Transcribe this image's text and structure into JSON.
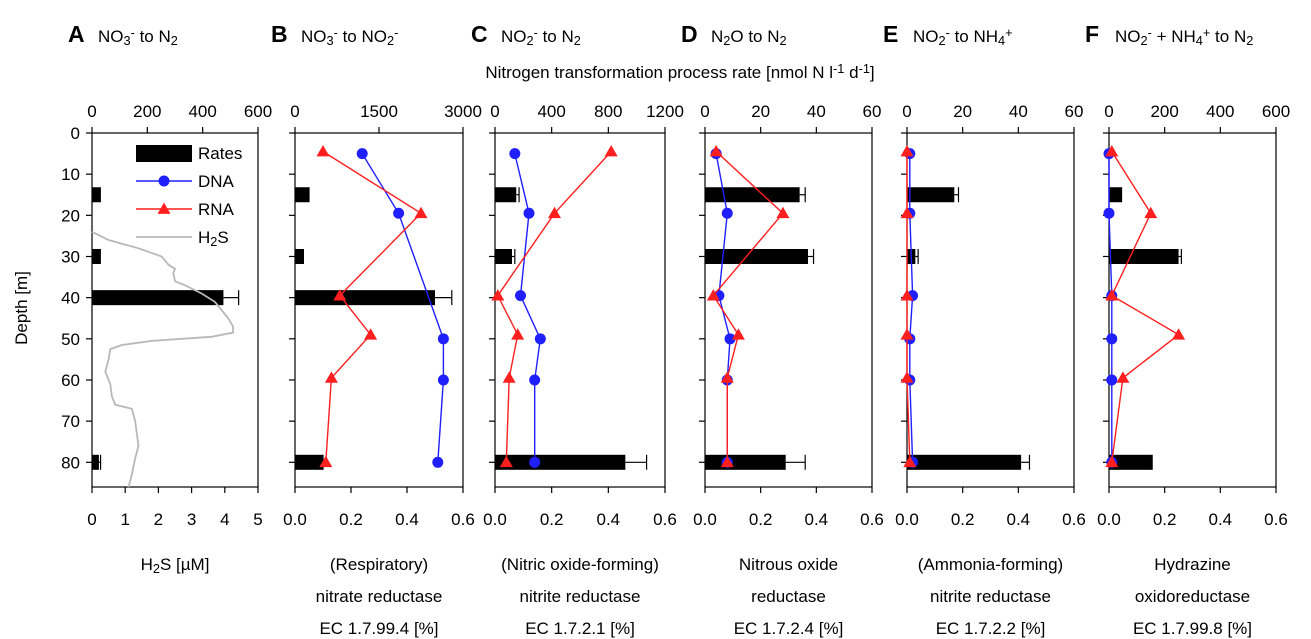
{
  "shared": {
    "top_axis_title": "Nitrogen transformation process rate [nmol N l⁻¹ d⁻¹]",
    "ylabel": "Depth [m]",
    "ylim": [
      0,
      86
    ],
    "yticks": [
      0,
      10,
      20,
      30,
      40,
      50,
      60,
      70,
      80
    ],
    "legend": {
      "placement": "top-left (panel A)",
      "rates": "Rates",
      "dna": "DNA",
      "rna": "RNA",
      "h2s": "H₂S"
    },
    "colors": {
      "rates": "#000000",
      "dna": "#1f1fff",
      "rna": "#ff1f1f",
      "h2s": "#b8b8b8"
    }
  },
  "panels": [
    {
      "letter": "A",
      "title": "NO₃⁻ to N₂",
      "bottom_label_lines": [
        "H₂S [µM]"
      ]
    },
    {
      "letter": "B",
      "title": "NO₃⁻ to NO₂⁻",
      "bottom_label_lines": [
        "(Respiratory)",
        "nitrate reductase",
        "EC 1.7.99.4 [%]"
      ]
    },
    {
      "letter": "C",
      "title": "NO₂⁻ to N₂",
      "bottom_label_lines": [
        "(Nitric oxide-forming)",
        "nitrite reductase",
        "EC 1.7.2.1 [%]"
      ]
    },
    {
      "letter": "D",
      "title": "N₂O to N₂",
      "bottom_label_lines": [
        "Nitrous oxide",
        "reductase",
        "EC 1.7.2.4 [%]"
      ]
    },
    {
      "letter": "E",
      "title": "NO₂⁻ to NH₄⁺",
      "bottom_label_lines": [
        "(Ammonia-forming)",
        "nitrite reductase",
        "EC 1.7.2.2 [%]"
      ]
    },
    {
      "letter": "F",
      "title": "NO₂⁻ + NH₄⁺ to N₂",
      "bottom_label_lines": [
        "Hydrazine",
        "oxidoreductase",
        "EC 1.7.99.8 [%]"
      ]
    }
  ],
  "chart_data": [
    {
      "panel": "A",
      "type": "bar",
      "top_axis": {
        "lim": [
          0,
          600
        ],
        "ticks": [
          0,
          200,
          400,
          600
        ]
      },
      "bottom_axis": {
        "lim": [
          0,
          5
        ],
        "ticks": [
          0,
          1,
          2,
          3,
          4,
          5
        ]
      },
      "rates": [
        {
          "depth": 15,
          "value": 30,
          "err": 0
        },
        {
          "depth": 30,
          "value": 30,
          "err": 0
        },
        {
          "depth": 40,
          "value": 475,
          "err": 55
        },
        {
          "depth": 80,
          "value": 25,
          "err": 6
        }
      ],
      "h2s": [
        {
          "depth": 24,
          "value": 0
        },
        {
          "depth": 26,
          "value": 0.5
        },
        {
          "depth": 28,
          "value": 1.4
        },
        {
          "depth": 30,
          "value": 2.1
        },
        {
          "depth": 32,
          "value": 2.3
        },
        {
          "depth": 33,
          "value": 2.5
        },
        {
          "depth": 34,
          "value": 2.45
        },
        {
          "depth": 36,
          "value": 2.5
        },
        {
          "depth": 37,
          "value": 2.8
        },
        {
          "depth": 39,
          "value": 3.3
        },
        {
          "depth": 41,
          "value": 3.7
        },
        {
          "depth": 43,
          "value": 3.9
        },
        {
          "depth": 45,
          "value": 4.1
        },
        {
          "depth": 47,
          "value": 4.25
        },
        {
          "depth": 48.5,
          "value": 4.25
        },
        {
          "depth": 49.5,
          "value": 3.6
        },
        {
          "depth": 50.5,
          "value": 1.8
        },
        {
          "depth": 51.5,
          "value": 0.9
        },
        {
          "depth": 52.5,
          "value": 0.55
        },
        {
          "depth": 55,
          "value": 0.5
        },
        {
          "depth": 58,
          "value": 0.4
        },
        {
          "depth": 61,
          "value": 0.55
        },
        {
          "depth": 64,
          "value": 0.6
        },
        {
          "depth": 66,
          "value": 0.7
        },
        {
          "depth": 67,
          "value": 1.2
        },
        {
          "depth": 70,
          "value": 1.3
        },
        {
          "depth": 73,
          "value": 1.35
        },
        {
          "depth": 76,
          "value": 1.4
        },
        {
          "depth": 79,
          "value": 1.3
        },
        {
          "depth": 83,
          "value": 1.2
        },
        {
          "depth": 86,
          "value": 1.1
        }
      ]
    },
    {
      "panel": "B",
      "type": "bar",
      "top_axis": {
        "lim": [
          0,
          3000
        ],
        "ticks": [
          0,
          1500,
          3000
        ]
      },
      "bottom_axis": {
        "lim": [
          0,
          0.6
        ],
        "ticks": [
          0.0,
          0.2,
          0.4,
          0.6
        ]
      },
      "rates": [
        {
          "depth": 15,
          "value": 250,
          "err": 0
        },
        {
          "depth": 30,
          "value": 150,
          "err": 0
        },
        {
          "depth": 40,
          "value": 2500,
          "err": 300
        },
        {
          "depth": 80,
          "value": 500,
          "err": 0
        }
      ],
      "dna": [
        {
          "depth": 5,
          "value": 0.24
        },
        {
          "depth": 19.5,
          "value": 0.37
        },
        {
          "depth": 50,
          "value": 0.53
        },
        {
          "depth": 60,
          "value": 0.53
        },
        {
          "depth": 80,
          "value": 0.51
        }
      ],
      "rna": [
        {
          "depth": 4.5,
          "value": 0.1
        },
        {
          "depth": 19.5,
          "value": 0.45
        },
        {
          "depth": 39.5,
          "value": 0.16
        },
        {
          "depth": 49,
          "value": 0.27
        },
        {
          "depth": 59.5,
          "value": 0.13
        },
        {
          "depth": 80,
          "value": 0.11
        }
      ]
    },
    {
      "panel": "C",
      "type": "bar",
      "top_axis": {
        "lim": [
          0,
          1200
        ],
        "ticks": [
          0,
          400,
          800,
          1200
        ]
      },
      "bottom_axis": {
        "lim": [
          0,
          0.6
        ],
        "ticks": [
          0.0,
          0.2,
          0.4,
          0.6
        ]
      },
      "rates": [
        {
          "depth": 15,
          "value": 150,
          "err": 20
        },
        {
          "depth": 30,
          "value": 120,
          "err": 20
        },
        {
          "depth": 80,
          "value": 920,
          "err": 150
        }
      ],
      "dna": [
        {
          "depth": 5,
          "value": 0.07
        },
        {
          "depth": 19.5,
          "value": 0.12
        },
        {
          "depth": 39.5,
          "value": 0.09
        },
        {
          "depth": 50,
          "value": 0.16
        },
        {
          "depth": 60,
          "value": 0.14
        },
        {
          "depth": 80,
          "value": 0.14
        }
      ],
      "rna": [
        {
          "depth": 4.5,
          "value": 0.41
        },
        {
          "depth": 19.5,
          "value": 0.21
        },
        {
          "depth": 39.5,
          "value": 0.01
        },
        {
          "depth": 49,
          "value": 0.08
        },
        {
          "depth": 59.5,
          "value": 0.05
        },
        {
          "depth": 80,
          "value": 0.04
        }
      ]
    },
    {
      "panel": "D",
      "type": "bar",
      "top_axis": {
        "lim": [
          0,
          60
        ],
        "ticks": [
          0,
          20,
          40,
          60
        ]
      },
      "bottom_axis": {
        "lim": [
          0,
          0.6
        ],
        "ticks": [
          0.0,
          0.2,
          0.4,
          0.6
        ]
      },
      "rates": [
        {
          "depth": 15,
          "value": 34,
          "err": 2
        },
        {
          "depth": 30,
          "value": 37,
          "err": 2
        },
        {
          "depth": 80,
          "value": 29,
          "err": 7
        }
      ],
      "dna": [
        {
          "depth": 5,
          "value": 0.04
        },
        {
          "depth": 19.5,
          "value": 0.08
        },
        {
          "depth": 39.5,
          "value": 0.05
        },
        {
          "depth": 50,
          "value": 0.09
        },
        {
          "depth": 60,
          "value": 0.08
        },
        {
          "depth": 80,
          "value": 0.08
        }
      ],
      "rna": [
        {
          "depth": 4.5,
          "value": 0.04
        },
        {
          "depth": 19.5,
          "value": 0.28
        },
        {
          "depth": 39.5,
          "value": 0.03
        },
        {
          "depth": 49,
          "value": 0.12
        },
        {
          "depth": 59.5,
          "value": 0.08
        },
        {
          "depth": 80,
          "value": 0.08
        }
      ]
    },
    {
      "panel": "E",
      "type": "bar",
      "top_axis": {
        "lim": [
          0,
          60
        ],
        "ticks": [
          0,
          20,
          40,
          60
        ]
      },
      "bottom_axis": {
        "lim": [
          0,
          0.6
        ],
        "ticks": [
          0.0,
          0.2,
          0.4,
          0.6
        ]
      },
      "rates": [
        {
          "depth": 15,
          "value": 17,
          "err": 1.5
        },
        {
          "depth": 30,
          "value": 3,
          "err": 1
        },
        {
          "depth": 80,
          "value": 41,
          "err": 3
        }
      ],
      "dna": [
        {
          "depth": 5,
          "value": 0.01
        },
        {
          "depth": 19.5,
          "value": 0.01
        },
        {
          "depth": 39.5,
          "value": 0.02
        },
        {
          "depth": 50,
          "value": 0.01
        },
        {
          "depth": 60,
          "value": 0.01
        },
        {
          "depth": 80,
          "value": 0.02
        }
      ],
      "rna": [
        {
          "depth": 4.5,
          "value": 0.0
        },
        {
          "depth": 19.5,
          "value": 0.0
        },
        {
          "depth": 39.5,
          "value": 0.0
        },
        {
          "depth": 49,
          "value": 0.0
        },
        {
          "depth": 59.5,
          "value": 0.0
        },
        {
          "depth": 80,
          "value": 0.01
        }
      ]
    },
    {
      "panel": "F",
      "type": "bar",
      "top_axis": {
        "lim": [
          0,
          600
        ],
        "ticks": [
          0,
          200,
          400,
          600
        ]
      },
      "bottom_axis": {
        "lim": [
          0,
          0.6
        ],
        "ticks": [
          0.0,
          0.2,
          0.4,
          0.6
        ]
      },
      "rates": [
        {
          "depth": 15,
          "value": 45,
          "err": 0
        },
        {
          "depth": 30,
          "value": 250,
          "err": 10
        },
        {
          "depth": 80,
          "value": 155,
          "err": 0
        }
      ],
      "dna": [
        {
          "depth": 5,
          "value": 0.0
        },
        {
          "depth": 19.5,
          "value": 0.0
        },
        {
          "depth": 39.5,
          "value": 0.01
        },
        {
          "depth": 50,
          "value": 0.01
        },
        {
          "depth": 60,
          "value": 0.01
        },
        {
          "depth": 80,
          "value": 0.01
        }
      ],
      "rna": [
        {
          "depth": 4.5,
          "value": 0.01
        },
        {
          "depth": 19.5,
          "value": 0.15
        },
        {
          "depth": 39.5,
          "value": 0.01
        },
        {
          "depth": 49,
          "value": 0.25
        },
        {
          "depth": 59.5,
          "value": 0.05
        },
        {
          "depth": 80,
          "value": 0.01
        }
      ]
    }
  ]
}
